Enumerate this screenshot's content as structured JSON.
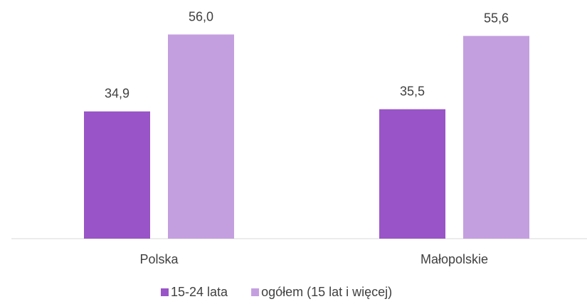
{
  "chart_data": {
    "type": "bar",
    "categories": [
      "Polska",
      "Małopolskie"
    ],
    "series": [
      {
        "name": "15-24 lata",
        "color": "#9955c8",
        "values": [
          34.9,
          35.5
        ],
        "value_labels": [
          "34,9",
          "35,5"
        ]
      },
      {
        "name": "ogółem (15 lat i więcej)",
        "color": "#c49fe0",
        "values": [
          56.0,
          55.6
        ],
        "value_labels": [
          "56,0",
          "55,6"
        ]
      }
    ],
    "ylim": [
      0,
      60
    ],
    "legend": "bottom"
  }
}
